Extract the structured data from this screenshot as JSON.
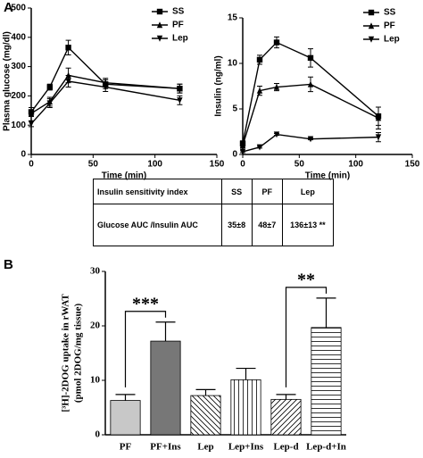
{
  "panel_labels": [
    "A",
    "B"
  ],
  "chart_data": [
    {
      "type": "line",
      "ylabel": "Plasma glucose (mg/dl)",
      "xlabel": "Time (min)",
      "x": [
        0,
        15,
        30,
        60,
        120
      ],
      "xlim": [
        0,
        150
      ],
      "xticks": [
        0,
        50,
        100,
        150
      ],
      "ylim": [
        0,
        500
      ],
      "yticks": [
        0,
        100,
        200,
        300,
        400,
        500
      ],
      "series": [
        {
          "name": "SS",
          "marker": "square",
          "color": "#000000",
          "values": [
            145,
            230,
            365,
            240,
            225
          ],
          "errors": [
            15,
            10,
            25,
            15,
            15
          ]
        },
        {
          "name": "PF",
          "marker": "triangle-up",
          "color": "#000000",
          "values": [
            140,
            180,
            270,
            245,
            225
          ],
          "errors": [
            10,
            15,
            25,
            15,
            15
          ]
        },
        {
          "name": "Lep",
          "marker": "triangle-down",
          "color": "#000000",
          "values": [
            105,
            175,
            250,
            230,
            185
          ],
          "errors": [
            10,
            15,
            20,
            15,
            15
          ]
        }
      ]
    },
    {
      "type": "line",
      "ylabel": "Insulin (ng/ml)",
      "xlabel": "Time (min)",
      "x": [
        0,
        15,
        30,
        60,
        120
      ],
      "xlim": [
        0,
        150
      ],
      "xticks": [
        0,
        50,
        100,
        150
      ],
      "ylim": [
        0,
        15
      ],
      "yticks": [
        0,
        5,
        10,
        15
      ],
      "series": [
        {
          "name": "SS",
          "marker": "square",
          "color": "#000000",
          "values": [
            1.2,
            10.4,
            12.3,
            10.6,
            4.2
          ],
          "errors": [
            0.3,
            0.5,
            0.6,
            1.0,
            1.0
          ]
        },
        {
          "name": "PF",
          "marker": "triangle-up",
          "color": "#000000",
          "values": [
            1.0,
            7.0,
            7.4,
            7.7,
            4.0
          ],
          "errors": [
            0.3,
            0.5,
            0.4,
            0.8,
            1.2
          ]
        },
        {
          "name": "Lep",
          "marker": "triangle-down",
          "color": "#000000",
          "values": [
            0.3,
            0.8,
            2.2,
            1.7,
            1.9
          ],
          "errors": [
            0.1,
            0.1,
            0.1,
            0.1,
            0.5
          ]
        }
      ]
    },
    {
      "type": "bar",
      "ylabel": [
        "[³H]-2DOG uptake in rWAT",
        "(pmol 2DOG/mg tissue)"
      ],
      "categories": [
        "PF",
        "PF+Ins",
        "Lep",
        "Lep+Ins",
        "Lep-d",
        "Lep-d+In"
      ],
      "values": [
        6.3,
        17.2,
        7.2,
        10.1,
        6.5,
        19.7
      ],
      "errors": [
        1.1,
        3.5,
        1.1,
        2.1,
        0.9,
        5.4
      ],
      "colors": [
        "#c8c8c8",
        "#777777",
        "#ffffff",
        "#ffffff",
        "#ffffff",
        "#ffffff"
      ],
      "patterns": [
        "solid",
        "solid",
        "diagonal",
        "vertical",
        "diagonal-rev",
        "horizontal"
      ],
      "ylim": [
        0,
        30
      ],
      "yticks": [
        0,
        10,
        20,
        30
      ],
      "annotations": [
        {
          "text": "***",
          "between": [
            "PF",
            "PF+Ins"
          ]
        },
        {
          "text": "**",
          "between": [
            "Lep-d",
            "Lep-d+In"
          ]
        }
      ]
    }
  ],
  "table": {
    "header": [
      "Insulin sensitivity index",
      "SS",
      "PF",
      "Lep"
    ],
    "rows": [
      [
        "Glucose AUC /Insulin AUC",
        "35±8",
        "48±7",
        "136±13 **"
      ]
    ]
  }
}
